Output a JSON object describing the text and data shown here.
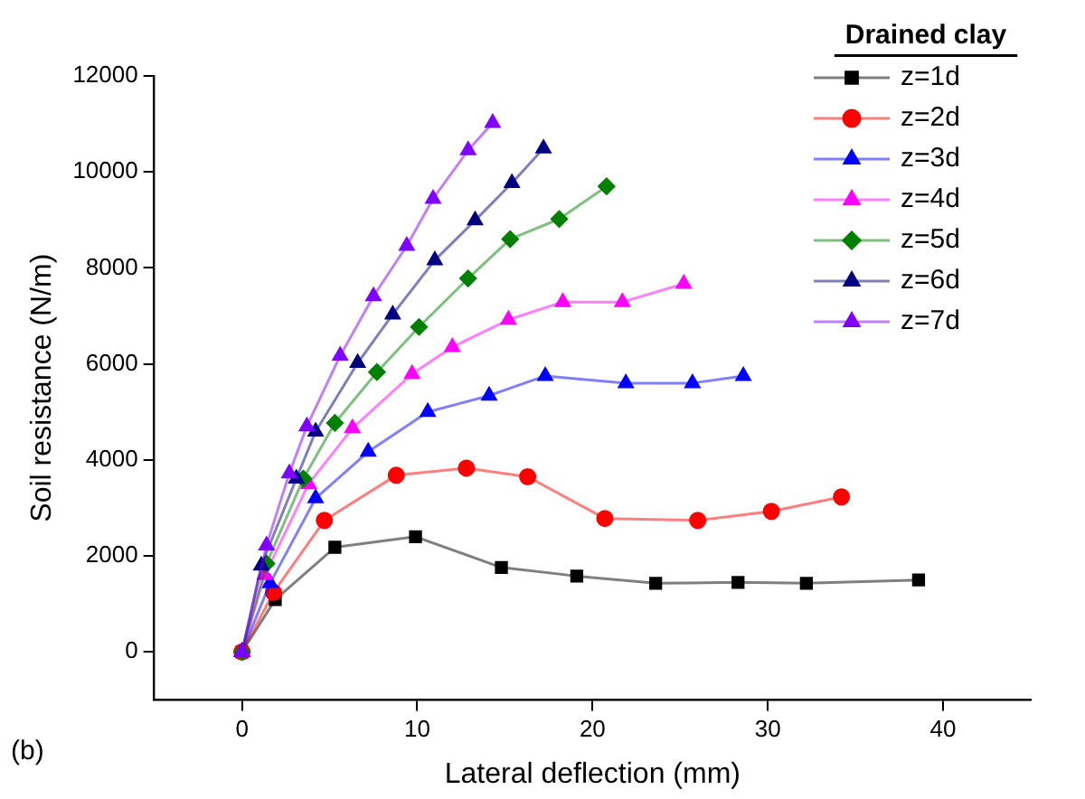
{
  "chart_data": {
    "type": "line",
    "xlabel": "Lateral deflection (mm)",
    "ylabel": "Soil resistance (N/m)",
    "legend_title": "Drained clay",
    "annotations": [
      "(b)"
    ],
    "xlim": [
      -5,
      45
    ],
    "xticks": [
      0,
      10,
      20,
      30,
      40
    ],
    "ylim": [
      -1000,
      12000
    ],
    "yticks": [
      0,
      2000,
      4000,
      6000,
      8000,
      10000,
      12000
    ],
    "grid": false,
    "legend": "top right",
    "series": [
      {
        "name": "z=1d",
        "color": "#000000",
        "marker": "square",
        "x": [
          0,
          1.9,
          5.3,
          9.9,
          14.8,
          19.1,
          23.6,
          28.3,
          32.2,
          38.6
        ],
        "values": [
          0,
          1090,
          2180,
          2400,
          1760,
          1580,
          1430,
          1450,
          1430,
          1500
        ]
      },
      {
        "name": "z=2d",
        "color": "#ff0000",
        "marker": "circle",
        "x": [
          0,
          1.8,
          4.7,
          8.8,
          12.8,
          16.3,
          20.7,
          26,
          30.2,
          34.2
        ],
        "values": [
          0,
          1240,
          2740,
          3680,
          3830,
          3650,
          2780,
          2740,
          2930,
          3230
        ]
      },
      {
        "name": "z=3d",
        "color": "#0000ff",
        "marker": "triangle",
        "x": [
          0,
          1.6,
          4.2,
          7.2,
          10.6,
          14.1,
          17.3,
          21.9,
          25.7,
          28.6
        ],
        "values": [
          0,
          1430,
          3200,
          4170,
          5000,
          5340,
          5750,
          5600,
          5600,
          5750
        ]
      },
      {
        "name": "z=4d",
        "color": "#ff00ff",
        "marker": "triangle",
        "x": [
          0,
          1.3,
          3.8,
          6.3,
          9.7,
          12,
          15.2,
          18.3,
          21.7,
          25.2
        ],
        "values": [
          0,
          1600,
          3500,
          4660,
          5790,
          6350,
          6920,
          7290,
          7290,
          7670
        ]
      },
      {
        "name": "z=5d",
        "color": "#008000",
        "marker": "diamond",
        "x": [
          0,
          1.4,
          3.5,
          5.3,
          7.7,
          10.1,
          12.9,
          15.3,
          18.1,
          20.8
        ],
        "values": [
          0,
          1840,
          3610,
          4770,
          5830,
          6770,
          7780,
          8600,
          9020,
          9700
        ]
      },
      {
        "name": "z=6d",
        "color": "#000080",
        "marker": "triangle",
        "x": [
          0,
          1.1,
          3.1,
          4.2,
          6.6,
          8.6,
          11,
          13.3,
          15.4,
          17.2
        ],
        "values": [
          0,
          1800,
          3610,
          4590,
          6020,
          7030,
          8160,
          8990,
          9770,
          10490
        ]
      },
      {
        "name": "z=7d",
        "color": "#8000ff",
        "marker": "triangle",
        "x": [
          0,
          1.4,
          2.7,
          3.7,
          5.6,
          7.5,
          9.4,
          10.9,
          12.9,
          14.3
        ],
        "values": [
          0,
          2220,
          3720,
          4700,
          6170,
          7410,
          8460,
          9440,
          10450,
          11020
        ]
      }
    ]
  }
}
